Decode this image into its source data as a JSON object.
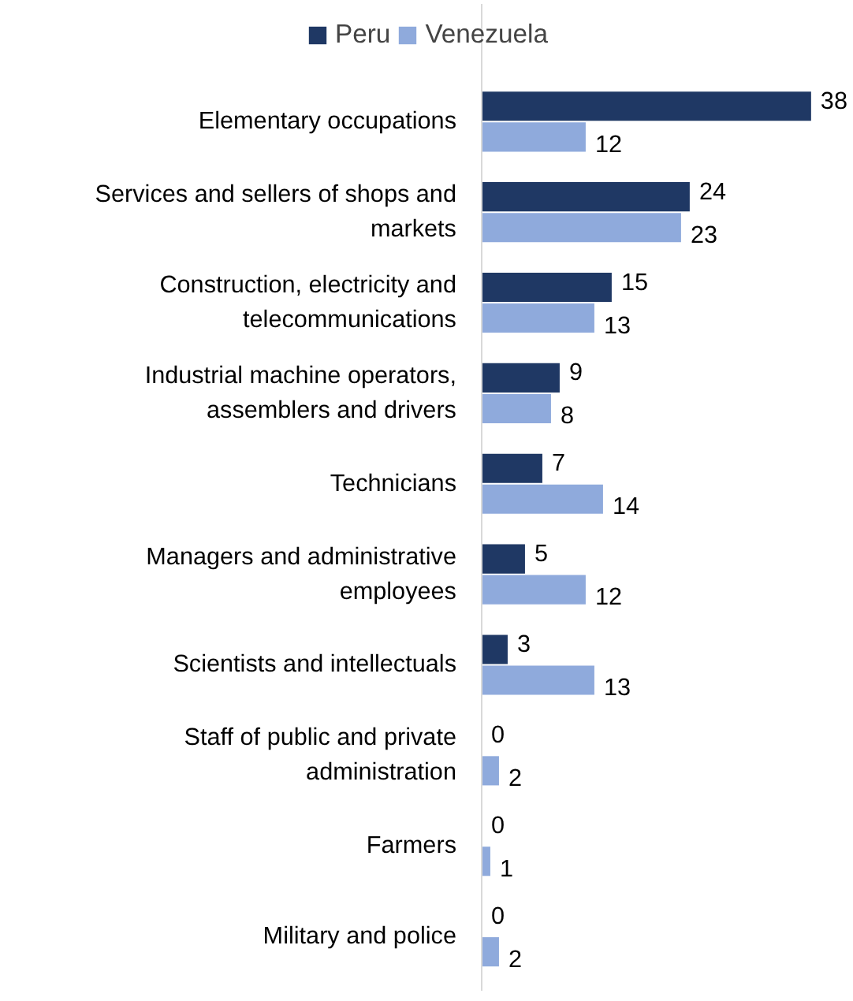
{
  "chart_data": {
    "type": "bar",
    "orientation": "horizontal",
    "categories": [
      "Elementary occupations",
      "Services and sellers of shops and markets",
      "Construction, electricity and telecommunications",
      "Industrial machine operators, assemblers and drivers",
      "Technicians",
      "Managers and administrative employees",
      "Scientists and intellectuals",
      "Staff of public and private administration",
      "Farmers",
      "Military and police"
    ],
    "series": [
      {
        "name": "Peru",
        "color": "#1f3864",
        "values": [
          38,
          24,
          15,
          9,
          7,
          5,
          3,
          0,
          0,
          0
        ]
      },
      {
        "name": "Venezuela",
        "color": "#8faadc",
        "values": [
          12,
          23,
          13,
          8,
          14,
          12,
          13,
          2,
          1,
          2
        ]
      }
    ],
    "data_labels": true,
    "legend": "top",
    "grid": false,
    "tick_labels": "y"
  }
}
